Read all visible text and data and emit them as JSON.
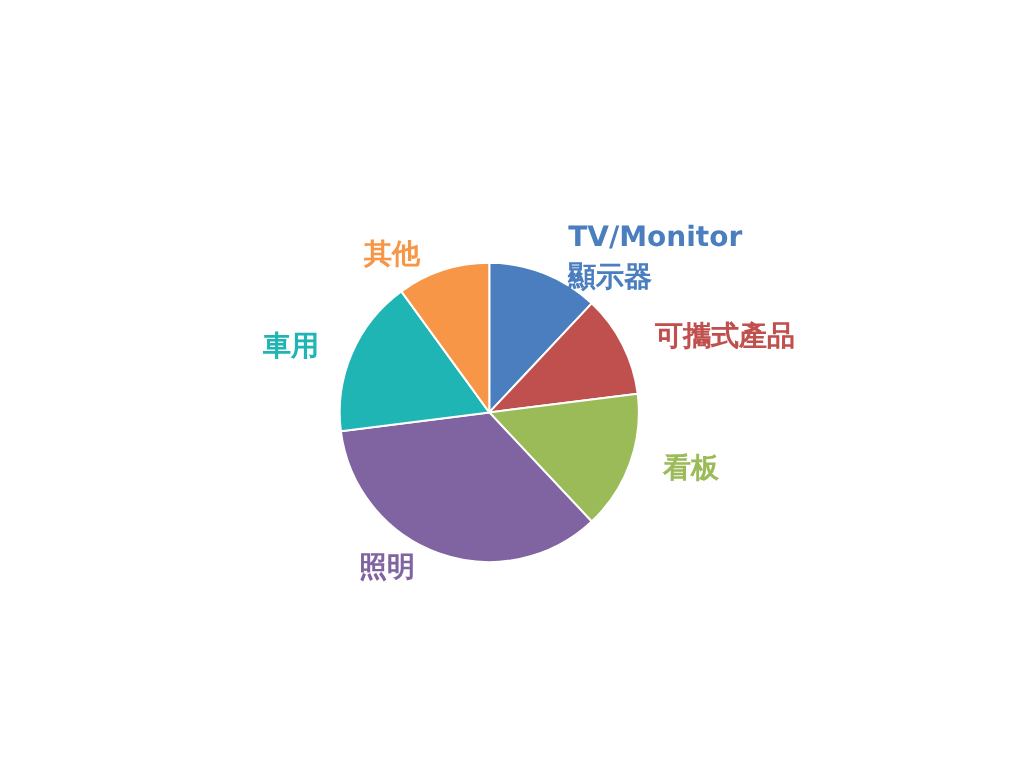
{
  "chart_data": {
    "type": "pie",
    "categories": [
      "TV/Monitor\n顯示器",
      "可攜式產品",
      "看板",
      "照明",
      "車用",
      "其他"
    ],
    "values": [
      12,
      11,
      15,
      35,
      17,
      10
    ],
    "colors": [
      "#4a7ebf",
      "#c0504d",
      "#9bbb59",
      "#8064a2",
      "#1fb5b5",
      "#f79646"
    ]
  }
}
